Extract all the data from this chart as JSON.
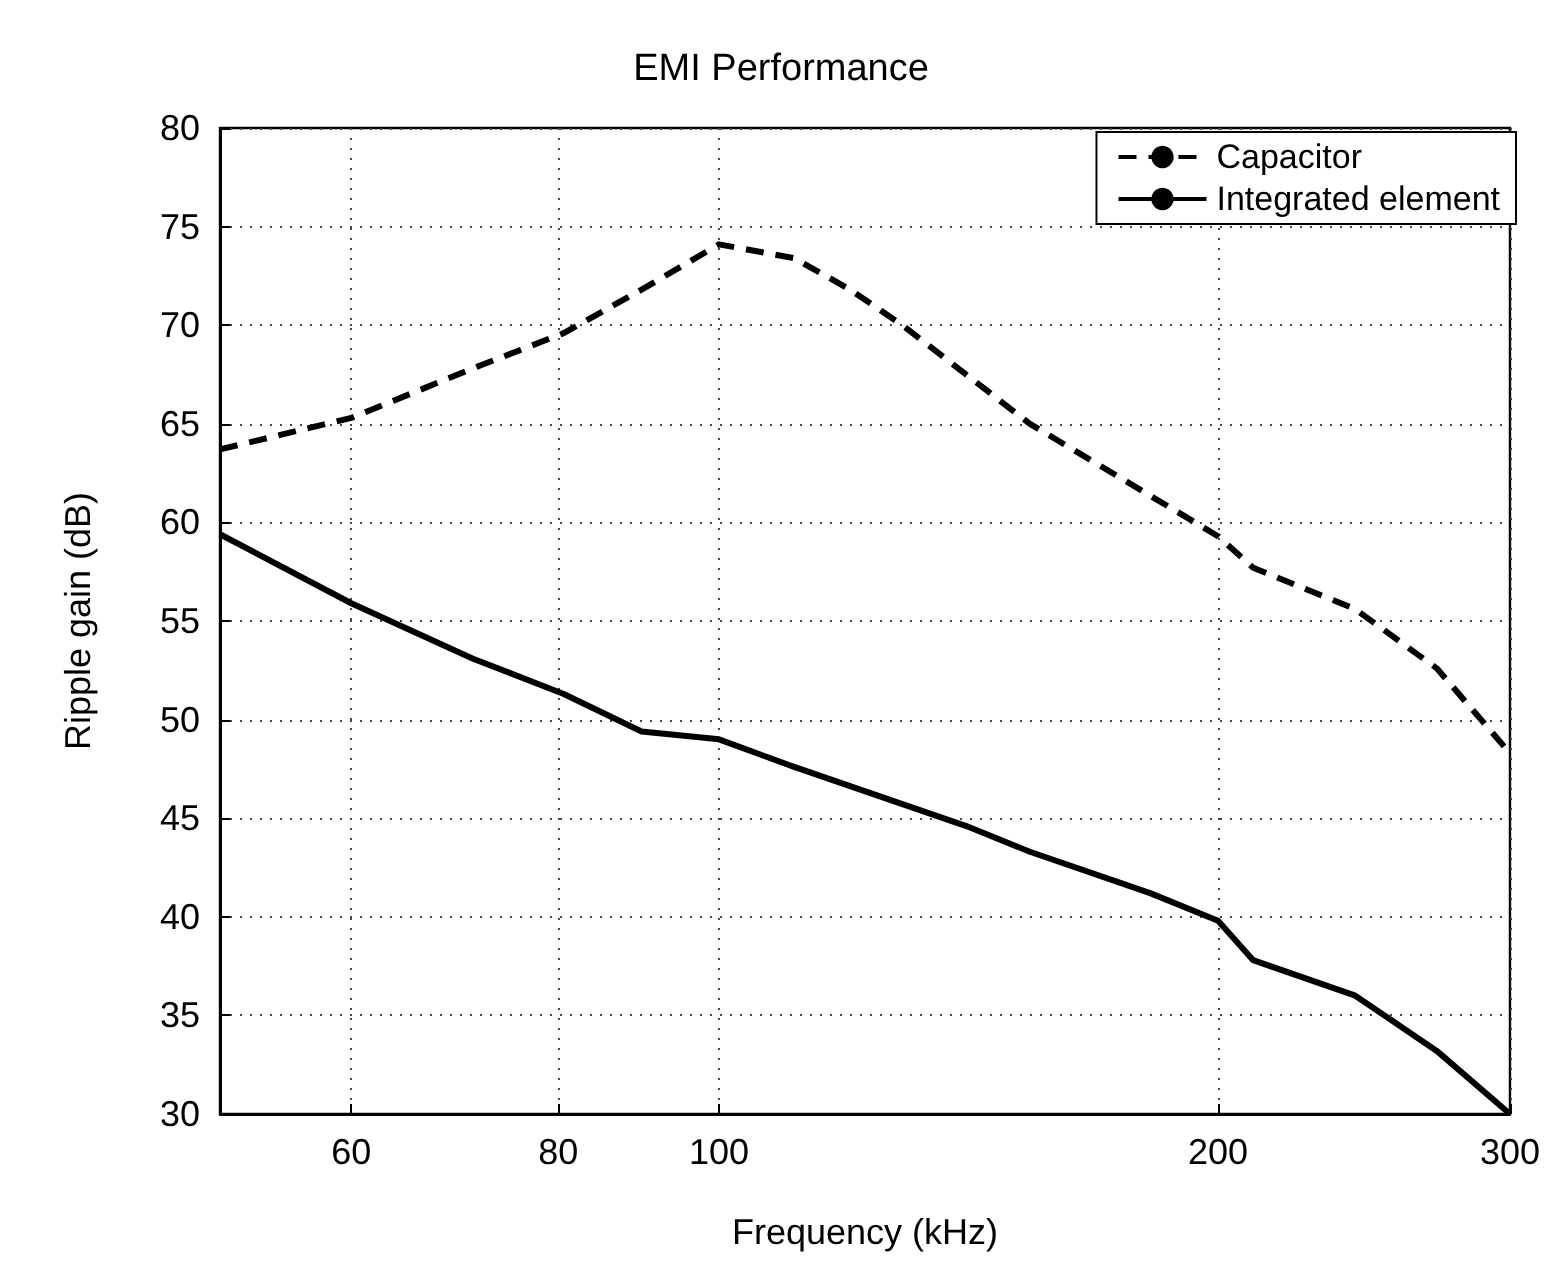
{
  "chart_data": {
    "type": "line",
    "title": "EMI Performance",
    "xlabel": "Frequency (kHz)",
    "ylabel": "Ripple gain (dB)",
    "log": "x",
    "xlim": [
      50,
      300
    ],
    "xticks": [
      60,
      80,
      100,
      200,
      300
    ],
    "ylim": [
      30,
      80
    ],
    "yticks": [
      30,
      35,
      40,
      45,
      50,
      55,
      60,
      65,
      70,
      75,
      80
    ],
    "grid": true,
    "legend": "top right",
    "marker": "none",
    "series": [
      {
        "name": "Capacitor",
        "color": "#000000",
        "line_style": "dashed",
        "x": [
          50,
          60,
          71,
          80.6,
          89.8,
          100,
          111,
          120,
          129,
          154,
          200,
          210,
          242,
          271,
          300
        ],
        "values": [
          63.7,
          65.3,
          67.8,
          69.6,
          71.8,
          74.1,
          73.4,
          71.8,
          70.0,
          65.0,
          59.3,
          57.7,
          55.6,
          52.6,
          48.3
        ]
      },
      {
        "name": "Integrated element",
        "color": "#000000",
        "line_style": "solid",
        "x": [
          50,
          60,
          71,
          80.6,
          89.8,
          100,
          111,
          141,
          154,
          182,
          200,
          210,
          242,
          271,
          300
        ],
        "values": [
          59.4,
          55.9,
          53.1,
          51.3,
          49.4,
          49.0,
          47.6,
          44.6,
          43.3,
          41.2,
          39.8,
          37.8,
          36.0,
          33.2,
          30.0
        ]
      }
    ]
  }
}
